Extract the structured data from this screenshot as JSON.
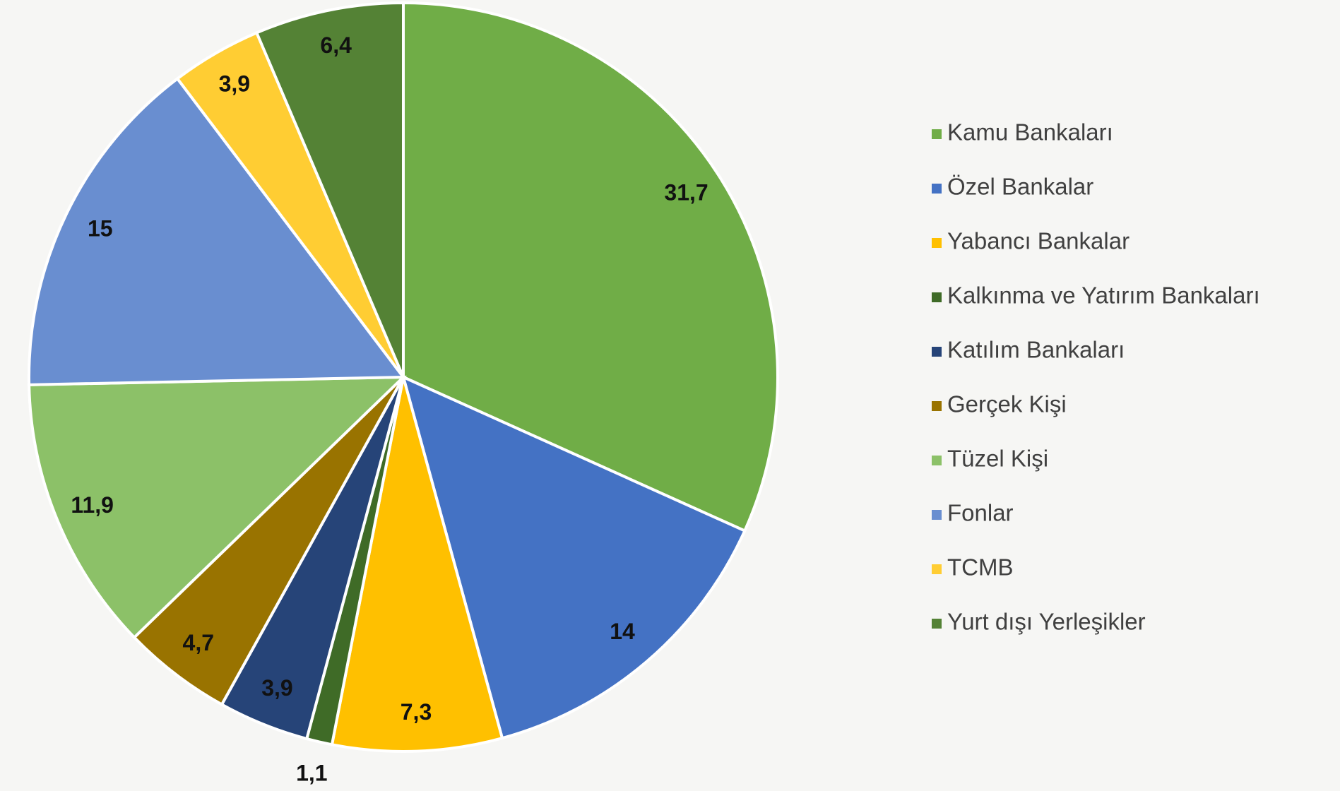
{
  "chart_data": {
    "type": "pie",
    "categories": [
      "Kamu Bankaları",
      "Özel Bankalar",
      "Yabancı Bankalar",
      "Kalkınma ve Yatırım Bankaları",
      "Katılım Bankaları",
      "Gerçek Kişi",
      "Tüzel Kişi",
      "Fonlar",
      "TCMB",
      "Yurt dışı Yerleşikler"
    ],
    "values": [
      31.7,
      14,
      7.3,
      1.1,
      3.9,
      4.7,
      11.9,
      15,
      3.9,
      6.4
    ],
    "value_labels": [
      "31,7",
      "14",
      "7,3",
      "1,1",
      "3,9",
      "4,7",
      "11,9",
      "15",
      "3,9",
      "6,4"
    ],
    "colors": [
      "#70ad47",
      "#4472c4",
      "#ffc000",
      "#3f6b27",
      "#264478",
      "#997300",
      "#8cc168",
      "#698ed0",
      "#ffcd33",
      "#548235"
    ],
    "legend": "right"
  }
}
